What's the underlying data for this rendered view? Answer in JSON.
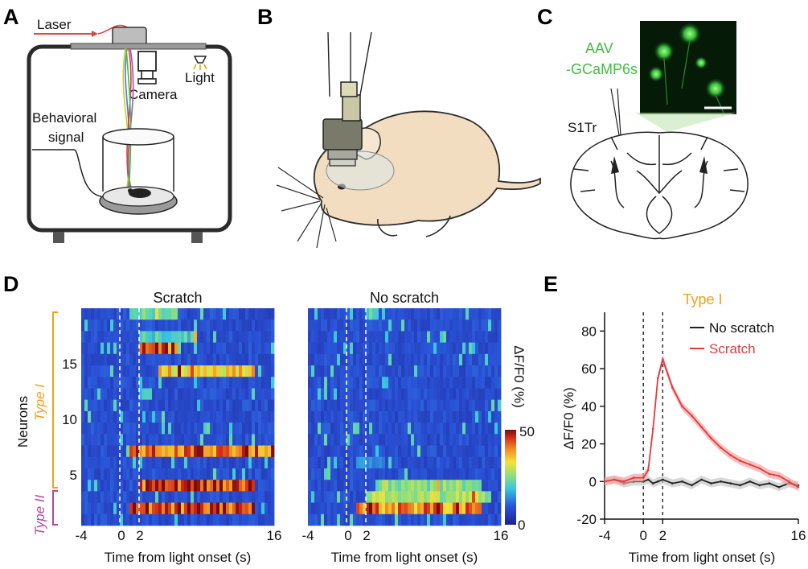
{
  "panels": {
    "a": "A",
    "b": "B",
    "c": "C",
    "d": "D",
    "e": "E"
  },
  "panel_a": {
    "laser": "Laser",
    "light": "Light",
    "camera": "Camera",
    "behavioral_1": "Behavioral",
    "behavioral_2": "signal"
  },
  "panel_c": {
    "aav_1": "AAV",
    "aav_2": "-GCaMP6s",
    "region": "S1Tr"
  },
  "panel_d": {
    "title_left": "Scratch",
    "title_right": "No scratch",
    "ylabel": "Neurons",
    "type1": "Type I",
    "type2": "Type II",
    "yticks": [
      "15",
      "10",
      "5"
    ],
    "xticks": [
      "-4",
      "0",
      "2",
      "16"
    ],
    "xlabel": "Time from light onset (s)",
    "cbar_label": "ΔF/F0 (%)",
    "cbar_max": "50",
    "cbar_min": "0"
  },
  "chart_data": {
    "type": "line",
    "title": "Type I",
    "xlabel": "Time from light onset (s)",
    "ylabel": "ΔF/F0 (%)",
    "xlim": [
      -4,
      16
    ],
    "ylim": [
      -20,
      90
    ],
    "xticks": [
      "-4",
      "0",
      "2",
      "16"
    ],
    "yticks": [
      "-20",
      "0",
      "20",
      "40",
      "60",
      "80"
    ],
    "vlines": [
      0,
      2
    ],
    "legend": "top-right",
    "x": [
      -4,
      -3,
      -2,
      -1,
      0,
      0.5,
      1,
      1.5,
      2,
      3,
      4,
      5,
      6,
      7,
      8,
      9,
      10,
      11,
      12,
      13,
      14,
      15,
      16
    ],
    "series": [
      {
        "name": "No scratch",
        "color": "#222222",
        "values": [
          0,
          1,
          -1,
          0,
          0,
          1,
          -1,
          0,
          1,
          -1,
          0,
          -2,
          1,
          -1,
          0,
          -1,
          -2,
          0,
          -2,
          -1,
          -3,
          -1,
          -2
        ]
      },
      {
        "name": "Scratch",
        "color": "#e23b3b",
        "values": [
          0,
          1,
          0,
          2,
          2,
          6,
          28,
          55,
          65,
          50,
          40,
          35,
          29,
          23,
          18,
          14,
          11,
          9,
          7,
          4,
          3,
          0,
          -3
        ]
      }
    ]
  },
  "colors": {
    "orange": "#f0a020",
    "purple": "#b04aa0",
    "green": "#3fbf3f",
    "red": "#e23b3b"
  }
}
